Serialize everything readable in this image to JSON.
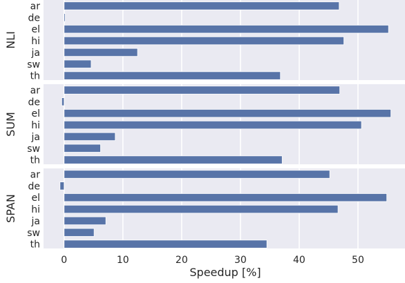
{
  "chart_data": {
    "type": "bar",
    "orientation": "horizontal",
    "xlabel": "Speedup [%]",
    "xlim": [
      -3.5,
      58
    ],
    "xticks": [
      0,
      10,
      20,
      30,
      40,
      50
    ],
    "grid": true,
    "colors": {
      "bar": "#5874a8",
      "panel_bg": "#eaeaf2",
      "grid": "#ffffff"
    },
    "categories": [
      "ar",
      "de",
      "el",
      "hi",
      "ja",
      "sw",
      "th"
    ],
    "panels": [
      {
        "name": "NLI",
        "values": [
          46.8,
          0.2,
          55.2,
          47.6,
          12.5,
          4.6,
          36.8
        ]
      },
      {
        "name": "SUM",
        "values": [
          46.9,
          -0.4,
          55.6,
          50.6,
          8.7,
          6.2,
          37.1
        ]
      },
      {
        "name": "SPAN",
        "values": [
          45.2,
          -0.7,
          54.9,
          46.6,
          7.1,
          5.1,
          34.5
        ]
      }
    ]
  }
}
